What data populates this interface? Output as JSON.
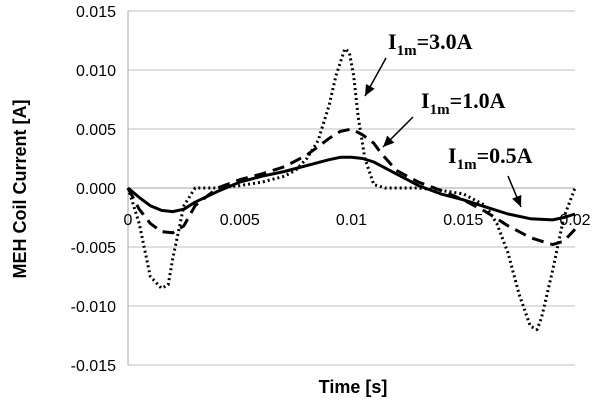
{
  "chart_data": {
    "type": "line",
    "title": "",
    "xlabel": "Time [s]",
    "ylabel": "MEH Coil Current [A]",
    "xlim": [
      0,
      0.02
    ],
    "ylim": [
      -0.015,
      0.015
    ],
    "grid": "horizontal",
    "x_tick_labels": [
      "0",
      "0.005",
      "0.01",
      "0.015",
      "0.02"
    ],
    "y_tick_labels": [
      "0.015",
      "0.010",
      "0.005",
      "0.000",
      "-0.005",
      "-0.010",
      "-0.015"
    ],
    "series": [
      {
        "style": "dotted",
        "color": "#000000",
        "x": [
          0,
          0.0005,
          0.001,
          0.0015,
          0.0018,
          0.002,
          0.0025,
          0.003,
          0.004,
          0.005,
          0.006,
          0.007,
          0.0075,
          0.008,
          0.0085,
          0.009,
          0.0093,
          0.0097,
          0.0099,
          0.0101,
          0.0103,
          0.0106,
          0.011,
          0.0115,
          0.012,
          0.013,
          0.014,
          0.015,
          0.016,
          0.0165,
          0.017,
          0.0175,
          0.018,
          0.0183,
          0.0185,
          0.019,
          0.0195,
          0.02
        ],
        "y": [
          0,
          -0.003,
          -0.0075,
          -0.0085,
          -0.0082,
          -0.006,
          -0.0015,
          0,
          0,
          0.0002,
          0.0005,
          0.001,
          0.0015,
          0.0025,
          0.004,
          0.007,
          0.0095,
          0.0118,
          0.0115,
          0.0095,
          0.006,
          0.0025,
          0.0003,
          0,
          0,
          0,
          -0.0002,
          -0.0005,
          -0.0015,
          -0.003,
          -0.0055,
          -0.009,
          -0.0117,
          -0.012,
          -0.011,
          -0.007,
          -0.0025,
          0
        ]
      },
      {
        "style": "dashed",
        "color": "#000000",
        "x": [
          0,
          0.0005,
          0.001,
          0.0015,
          0.002,
          0.0025,
          0.003,
          0.004,
          0.005,
          0.006,
          0.007,
          0.008,
          0.009,
          0.0095,
          0.01,
          0.0105,
          0.011,
          0.0113,
          0.012,
          0.013,
          0.014,
          0.015,
          0.016,
          0.017,
          0.018,
          0.019,
          0.0195,
          0.02
        ],
        "y": [
          0,
          -0.0018,
          -0.003,
          -0.0037,
          -0.0038,
          -0.0032,
          -0.0015,
          0,
          0.0007,
          0.0012,
          0.0018,
          0.0028,
          0.0042,
          0.0048,
          0.005,
          0.0045,
          0.0038,
          0.003,
          0.0015,
          0.0005,
          -0.0002,
          -0.001,
          -0.002,
          -0.0032,
          -0.0042,
          -0.0048,
          -0.0045,
          -0.0035
        ]
      },
      {
        "style": "solid",
        "color": "#000000",
        "x": [
          0,
          0.0005,
          0.001,
          0.0015,
          0.002,
          0.0025,
          0.003,
          0.004,
          0.005,
          0.006,
          0.007,
          0.008,
          0.009,
          0.0095,
          0.01,
          0.0105,
          0.011,
          0.012,
          0.013,
          0.014,
          0.015,
          0.016,
          0.017,
          0.018,
          0.019,
          0.0195,
          0.02
        ],
        "y": [
          0,
          -0.0008,
          -0.0015,
          -0.0019,
          -0.002,
          -0.0018,
          -0.0012,
          -0.0003,
          0.0005,
          0.001,
          0.0014,
          0.0019,
          0.0024,
          0.0026,
          0.0026,
          0.0025,
          0.0022,
          0.0012,
          0.0002,
          -0.0005,
          -0.001,
          -0.0016,
          -0.0022,
          -0.0026,
          -0.0027,
          -0.0025,
          -0.0022
        ]
      }
    ],
    "annotations": [
      {
        "main": "I",
        "sub": "1m",
        "rest": "=3.0A",
        "points_to_series": 0
      },
      {
        "main": "I",
        "sub": "1m",
        "rest": "=1.0A",
        "points_to_series": 1
      },
      {
        "main": "I",
        "sub": "1m",
        "rest": "=0.5A",
        "points_to_series": 2
      }
    ]
  }
}
